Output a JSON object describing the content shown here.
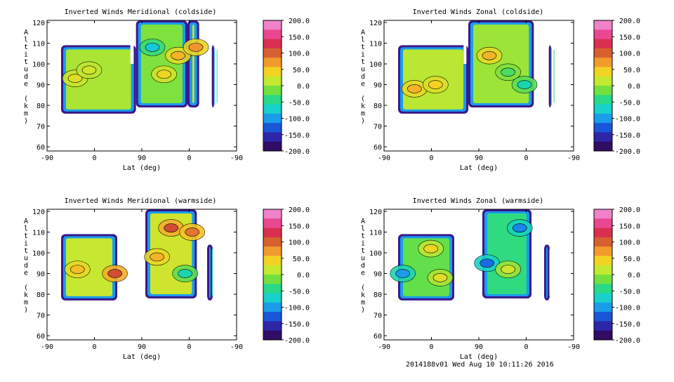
{
  "colors": {
    "background": "#ffffff",
    "axis": "#000000",
    "colorbar_stops": [
      "#2a0040",
      "#3a1a90",
      "#1a3ccc",
      "#1a8cf0",
      "#16d0d8",
      "#20d890",
      "#70e040",
      "#c8e830",
      "#f8d020",
      "#f09030",
      "#d05030",
      "#e02060",
      "#f060b0",
      "#f0a0e0"
    ]
  },
  "footer": {
    "stamp": "2014188v01 Wed Aug 10 10:11:26 2016"
  },
  "chart_data": [
    {
      "type": "heatmap",
      "title": "Inverted Winds Meridional (coldside)",
      "xlabel": "Lat (deg)",
      "ylabel": "Altitude (km)",
      "x_tick_labels": [
        "-90",
        "0",
        "90",
        "0",
        "-90"
      ],
      "y_tick_labels": [
        "60",
        "70",
        "80",
        "90",
        "100",
        "110",
        "120"
      ],
      "ylim": [
        58,
        121
      ],
      "colorbar": {
        "range": [
          -200,
          200
        ],
        "tick_labels": [
          "200.0",
          "150.0",
          "100.0",
          "50.0",
          "0.0",
          "-50.0",
          "-100.0",
          "-150.0",
          "-200.0"
        ]
      },
      "regions": [
        {
          "x": [
            -60,
            100
          ],
          "y": [
            76,
            109
          ],
          "value": 5
        },
        {
          "x": [
            100,
            210
          ],
          "y": [
            79,
            121
          ],
          "value": -10
        },
        {
          "x": [
            210,
            235
          ],
          "y": [
            79,
            121
          ],
          "value": 30
        },
        {
          "x": [
            262,
            267
          ],
          "y": [
            79,
            109
          ],
          "value": -30
        }
      ],
      "gaps": [
        {
          "x": [
            88,
            95
          ],
          "y": [
            100,
            121
          ]
        }
      ],
      "features": [
        {
          "x": -30,
          "y": 93,
          "value": 30
        },
        {
          "x": 0,
          "y": 97,
          "value": 20
        },
        {
          "x": 135,
          "y": 108,
          "value": -80
        },
        {
          "x": 160,
          "y": 95,
          "value": 40
        },
        {
          "x": 190,
          "y": 104,
          "value": 60
        },
        {
          "x": 228,
          "y": 108,
          "value": 75
        }
      ]
    },
    {
      "type": "heatmap",
      "title": "Inverted Winds Zonal (coldside)",
      "xlabel": "Lat (deg)",
      "ylabel": "Altitude (km)",
      "x_tick_labels": [
        "-90",
        "0",
        "90",
        "0",
        "-90"
      ],
      "y_tick_labels": [
        "60",
        "70",
        "80",
        "90",
        "100",
        "110",
        "120"
      ],
      "ylim": [
        58,
        121
      ],
      "colorbar": {
        "range": [
          -200,
          200
        ],
        "tick_labels": [
          "200.0",
          "150.0",
          "100.0",
          "50.0",
          "0.0",
          "-50.0",
          "-100.0",
          "-150.0",
          "-200.0"
        ]
      },
      "regions": [
        {
          "x": [
            -60,
            90
          ],
          "y": [
            76,
            109
          ],
          "value": 10
        },
        {
          "x": 90,
          "y": [
            79,
            121
          ],
          "value": 0,
          "x_end": 230
        },
        {
          "x": [
            262,
            267
          ],
          "y": [
            79,
            109
          ],
          "value": -40
        }
      ],
      "gaps": [
        {
          "x": [
            80,
            86
          ],
          "y": [
            100,
            121
          ]
        }
      ],
      "features": [
        {
          "x": -25,
          "y": 88,
          "value": 60
        },
        {
          "x": 20,
          "y": 90,
          "value": 45
        },
        {
          "x": 135,
          "y": 104,
          "value": 60
        },
        {
          "x": 175,
          "y": 96,
          "value": -30
        },
        {
          "x": 210,
          "y": 90,
          "value": -60
        }
      ]
    },
    {
      "type": "heatmap",
      "title": "Inverted Winds Meridional (warmside)",
      "xlabel": "Lat (deg)",
      "ylabel": "Altitude (km)",
      "x_tick_labels": [
        "-90",
        "0",
        "90",
        "0",
        "-90"
      ],
      "y_tick_labels": [
        "60",
        "70",
        "80",
        "90",
        "100",
        "110",
        "120"
      ],
      "ylim": [
        58,
        121
      ],
      "colorbar": {
        "range": [
          -200,
          200
        ],
        "tick_labels": [
          "200.0",
          "150.0",
          "100.0",
          "50.0",
          "0.0",
          "-50.0",
          "-100.0",
          "-150.0",
          "-200.0"
        ]
      },
      "regions": [
        {
          "x": [
            -60,
            60
          ],
          "y": [
            77,
            109
          ],
          "value": 15
        },
        {
          "x": [
            120,
            230
          ],
          "y": [
            78,
            121
          ],
          "value": 20
        },
        {
          "x": [
            252,
            264
          ],
          "y": [
            77,
            104
          ],
          "value": -70
        }
      ],
      "gaps": [],
      "features": [
        {
          "x": -25,
          "y": 92,
          "value": 55
        },
        {
          "x": 55,
          "y": 90,
          "value": 110
        },
        {
          "x": 175,
          "y": 112,
          "value": 110
        },
        {
          "x": 145,
          "y": 98,
          "value": 60
        },
        {
          "x": 220,
          "y": 110,
          "value": 90
        },
        {
          "x": 205,
          "y": 90,
          "value": -60
        }
      ]
    },
    {
      "type": "heatmap",
      "title": "Inverted Winds Zonal (warmside)",
      "xlabel": "Lat (deg)",
      "ylabel": "Altitude (km)",
      "x_tick_labels": [
        "-90",
        "0",
        "90",
        "0",
        "-90"
      ],
      "y_tick_labels": [
        "60",
        "70",
        "80",
        "90",
        "100",
        "110",
        "120"
      ],
      "ylim": [
        58,
        121
      ],
      "colorbar": {
        "range": [
          -200,
          200
        ],
        "tick_labels": [
          "200.0",
          "150.0",
          "100.0",
          "50.0",
          "0.0",
          "-50.0",
          "-100.0",
          "-150.0",
          "-200.0"
        ]
      },
      "regions": [
        {
          "x": [
            -60,
            60
          ],
          "y": [
            77,
            109
          ],
          "value": -20
        },
        {
          "x": [
            120,
            225
          ],
          "y": [
            78,
            121
          ],
          "value": -40
        },
        {
          "x": [
            252,
            264
          ],
          "y": [
            77,
            104
          ],
          "value": -60
        }
      ],
      "gaps": [],
      "features": [
        {
          "x": -50,
          "y": 90,
          "value": -100
        },
        {
          "x": 10,
          "y": 102,
          "value": 40
        },
        {
          "x": 30,
          "y": 88,
          "value": 30
        },
        {
          "x": 130,
          "y": 95,
          "value": -120
        },
        {
          "x": 175,
          "y": 92,
          "value": 20
        },
        {
          "x": 200,
          "y": 112,
          "value": -110
        }
      ]
    }
  ]
}
